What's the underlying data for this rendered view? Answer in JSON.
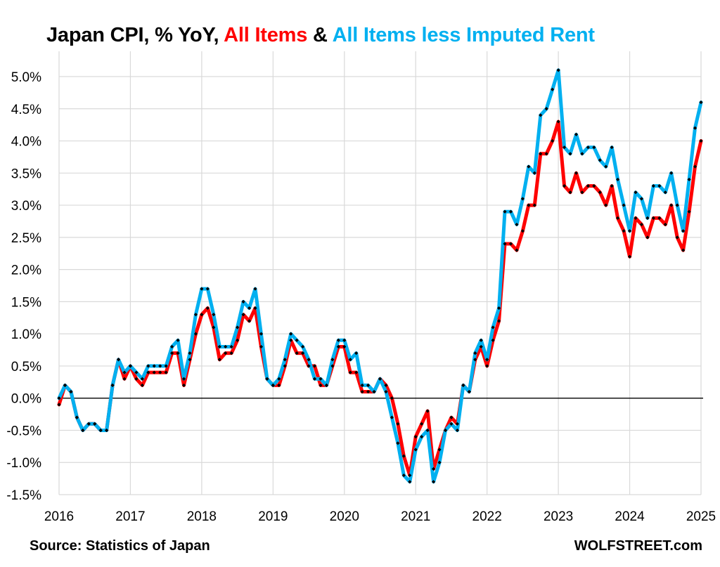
{
  "title": {
    "part1": "Japan CPI, % YoY, ",
    "part2": "All Items",
    "part3": " & ",
    "part4": "All Items less Imputed Rent"
  },
  "colors": {
    "title_black": "#000000",
    "all_items": "#ff0000",
    "less_rent": "#00b0f0",
    "marker": "#000000",
    "grid": "#d9d9d9",
    "zero_line": "#000000"
  },
  "footer": {
    "source": "Source: Statistics of Japan",
    "credit": "WOLFSTREET.com"
  },
  "chart_data": {
    "type": "line",
    "title": "Japan CPI, % YoY, All Items & All Items less Imputed Rent",
    "xlabel": "",
    "ylabel": "",
    "x_start": "2016-01",
    "x_frequency": "monthly",
    "x_ticks": [
      "2016",
      "2017",
      "2018",
      "2019",
      "2020",
      "2021",
      "2022",
      "2023",
      "2024",
      "2025"
    ],
    "y_ticks": [
      "-1.5%",
      "-1.0%",
      "-0.5%",
      "0.0%",
      "0.5%",
      "1.0%",
      "1.5%",
      "2.0%",
      "2.5%",
      "3.0%",
      "3.5%",
      "4.0%",
      "4.5%",
      "5.0%"
    ],
    "ylim": [
      -1.5,
      5.0
    ],
    "grid": true,
    "legend": "none (series named in title)",
    "series": [
      {
        "name": "All Items",
        "color": "#ff0000",
        "values": [
          -0.1,
          0.2,
          0.1,
          -0.3,
          -0.5,
          -0.4,
          -0.4,
          -0.5,
          -0.5,
          0.2,
          0.6,
          0.3,
          0.5,
          0.3,
          0.2,
          0.4,
          0.4,
          0.4,
          0.4,
          0.7,
          0.7,
          0.2,
          0.6,
          1.0,
          1.3,
          1.4,
          1.1,
          0.6,
          0.7,
          0.7,
          0.9,
          1.3,
          1.2,
          1.4,
          0.8,
          0.3,
          0.2,
          0.2,
          0.5,
          0.9,
          0.7,
          0.7,
          0.5,
          0.5,
          0.2,
          0.2,
          0.5,
          0.8,
          0.8,
          0.4,
          0.4,
          0.1,
          0.1,
          0.1,
          0.3,
          0.2,
          0.0,
          -0.4,
          -0.9,
          -1.2,
          -0.6,
          -0.4,
          -0.2,
          -1.1,
          -0.8,
          -0.5,
          -0.3,
          -0.4,
          0.2,
          0.1,
          0.6,
          0.8,
          0.5,
          0.9,
          1.2,
          2.4,
          2.4,
          2.3,
          2.6,
          3.0,
          3.0,
          3.8,
          3.8,
          4.0,
          4.3,
          3.3,
          3.2,
          3.5,
          3.2,
          3.3,
          3.3,
          3.2,
          3.0,
          3.3,
          2.8,
          2.6,
          2.2,
          2.8,
          2.7,
          2.5,
          2.8,
          2.8,
          2.7,
          3.0,
          2.5,
          2.3,
          2.9,
          3.6,
          4.0
        ]
      },
      {
        "name": "All Items less Imputed Rent",
        "color": "#00b0f0",
        "values": [
          0.0,
          0.2,
          0.1,
          -0.3,
          -0.5,
          -0.4,
          -0.4,
          -0.5,
          -0.5,
          0.2,
          0.6,
          0.4,
          0.5,
          0.4,
          0.3,
          0.5,
          0.5,
          0.5,
          0.5,
          0.8,
          0.9,
          0.3,
          0.7,
          1.3,
          1.7,
          1.7,
          1.3,
          0.8,
          0.8,
          0.8,
          1.1,
          1.5,
          1.4,
          1.7,
          1.0,
          0.3,
          0.2,
          0.3,
          0.6,
          1.0,
          0.9,
          0.8,
          0.6,
          0.3,
          0.3,
          0.2,
          0.6,
          0.9,
          0.9,
          0.6,
          0.7,
          0.2,
          0.2,
          0.1,
          0.3,
          0.1,
          -0.3,
          -0.7,
          -1.2,
          -1.3,
          -0.8,
          -0.6,
          -0.5,
          -1.3,
          -1.0,
          -0.5,
          -0.4,
          -0.5,
          0.2,
          0.1,
          0.7,
          0.9,
          0.6,
          1.1,
          1.4,
          2.9,
          2.9,
          2.7,
          3.1,
          3.6,
          3.5,
          4.4,
          4.5,
          4.8,
          5.1,
          3.9,
          3.8,
          4.1,
          3.8,
          3.9,
          3.9,
          3.7,
          3.6,
          3.9,
          3.4,
          3.0,
          2.6,
          3.2,
          3.1,
          2.8,
          3.3,
          3.3,
          3.2,
          3.5,
          3.0,
          2.6,
          3.4,
          4.2,
          4.6
        ]
      }
    ]
  }
}
